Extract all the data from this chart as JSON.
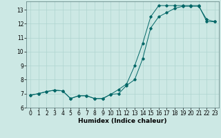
{
  "title": "",
  "xlabel": "Humidex (Indice chaleur)",
  "ylabel": "",
  "bg_color": "#cce8e4",
  "grid_color": "#aed4cf",
  "line_color": "#006666",
  "xlim": [
    -0.5,
    23.5
  ],
  "ylim": [
    6,
    13.6
  ],
  "yticks": [
    6,
    7,
    8,
    9,
    10,
    11,
    12,
    13
  ],
  "xticks": [
    0,
    1,
    2,
    3,
    4,
    5,
    6,
    7,
    8,
    9,
    10,
    11,
    12,
    13,
    14,
    15,
    16,
    17,
    18,
    19,
    20,
    21,
    22,
    23
  ],
  "line1_x": [
    0,
    1,
    2,
    3,
    4,
    5,
    6,
    7,
    8,
    9,
    10,
    11,
    12,
    13,
    14,
    15,
    16,
    17,
    18,
    19,
    20,
    21,
    22,
    23
  ],
  "line1_y": [
    6.9,
    7.0,
    7.15,
    7.25,
    7.2,
    6.65,
    6.85,
    6.85,
    6.65,
    6.65,
    6.95,
    7.0,
    7.6,
    8.0,
    9.5,
    11.7,
    12.5,
    12.8,
    13.1,
    13.25,
    13.25,
    13.25,
    12.3,
    12.15
  ],
  "line2_x": [
    0,
    1,
    2,
    3,
    4,
    5,
    6,
    7,
    8,
    9,
    10,
    11,
    12,
    13,
    14,
    15,
    16,
    17,
    18,
    19,
    20,
    21,
    22,
    23
  ],
  "line2_y": [
    6.9,
    7.0,
    7.15,
    7.25,
    7.2,
    6.65,
    6.85,
    6.85,
    6.65,
    6.65,
    6.95,
    7.3,
    7.7,
    9.0,
    10.6,
    12.5,
    13.3,
    13.3,
    13.3,
    13.3,
    13.3,
    13.3,
    12.15,
    12.15
  ],
  "tick_font_size": 5.5,
  "xlabel_font_size": 6.5,
  "marker": "D",
  "marker_size": 1.8,
  "linewidth": 0.7
}
